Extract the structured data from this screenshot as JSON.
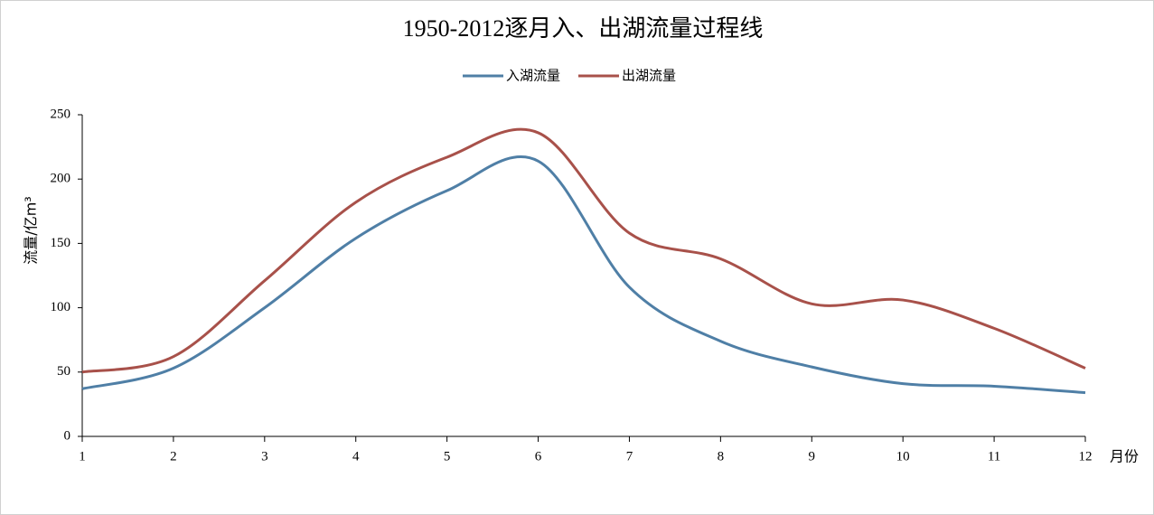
{
  "chart_data": {
    "type": "line",
    "title": "1950-2012逐月入、出湖流量过程线",
    "x_label": "月份",
    "y_label": "流量/亿m³",
    "x": [
      1,
      2,
      3,
      4,
      5,
      6,
      7,
      8,
      9,
      10,
      11,
      12
    ],
    "series": [
      {
        "name": "入湖流量",
        "color": "#4f7fa6",
        "values": [
          37,
          53,
          100,
          154,
          191,
          214,
          116,
          74,
          54,
          41,
          39,
          34
        ]
      },
      {
        "name": "出湖流量",
        "color": "#a8514a",
        "values": [
          50,
          62,
          121,
          182,
          217,
          236,
          158,
          138,
          103,
          106,
          84,
          53
        ]
      }
    ],
    "xlim": [
      1,
      12
    ],
    "xticks": [
      1,
      2,
      3,
      4,
      5,
      6,
      7,
      8,
      9,
      10,
      11,
      12
    ],
    "ylim": [
      0,
      250
    ],
    "yticks": [
      0,
      50,
      100,
      150,
      200,
      250
    ],
    "grid": false,
    "legend": "top",
    "smooth": true
  }
}
